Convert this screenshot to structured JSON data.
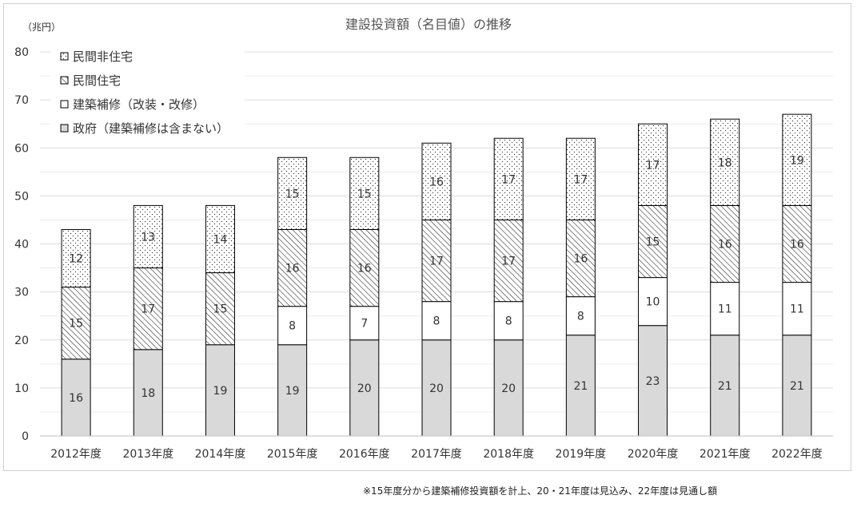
{
  "chart_data": {
    "type": "bar",
    "stacked": true,
    "title": "建設投資額（名目値）の推移",
    "ylabel": "（兆円）",
    "ylim": [
      0,
      80
    ],
    "yticks": [
      0,
      10,
      20,
      30,
      40,
      50,
      60,
      70,
      80
    ],
    "grid": true,
    "legend_position": "top-left",
    "categories": [
      "2012年度",
      "2013年度",
      "2014年度",
      "2015年度",
      "2016年度",
      "2017年度",
      "2018年度",
      "2019年度",
      "2020年度",
      "2021年度",
      "2022年度"
    ],
    "series": [
      {
        "name": "政府（建築補修は含まない）",
        "pattern": "solid",
        "color": "#d9d9d9",
        "values": [
          16,
          18,
          19,
          19,
          20,
          20,
          20,
          21,
          23,
          21,
          21
        ],
        "labels": [
          "16",
          "18",
          "19",
          "19",
          "20",
          "20",
          "20",
          "21",
          "23",
          "21",
          "21"
        ]
      },
      {
        "name": "建築補修（改装・改修）",
        "pattern": "solid",
        "color": "#ffffff",
        "values": [
          0,
          0,
          0,
          8,
          7,
          8,
          8,
          8,
          10,
          11,
          11
        ],
        "labels": [
          "",
          "",
          "",
          "8",
          "7",
          "8",
          "8",
          "8",
          "10",
          "11",
          "11"
        ]
      },
      {
        "name": "民間住宅",
        "pattern": "diagonal-hatch",
        "color": "#ffffff",
        "values": [
          15,
          17,
          15,
          16,
          16,
          17,
          17,
          16,
          15,
          16,
          16
        ],
        "labels": [
          "15",
          "17",
          "15",
          "16",
          "16",
          "17",
          "17",
          "16",
          "15",
          "16",
          "16"
        ]
      },
      {
        "name": "民間非住宅",
        "pattern": "dots",
        "color": "#ffffff",
        "values": [
          12,
          13,
          14,
          15,
          15,
          16,
          17,
          17,
          17,
          18,
          19
        ],
        "labels": [
          "12",
          "13",
          "14",
          "15",
          "15",
          "16",
          "17",
          "17",
          "17",
          "18",
          "19"
        ]
      }
    ],
    "legend_order": [
      "民間非住宅",
      "民間住宅",
      "建築補修（改装・改修）",
      "政府（建築補修は含まない）"
    ]
  },
  "footnote": "※15年度分から建築補修投資額を計上、20・21年度は見込み、22年度は見通し額"
}
